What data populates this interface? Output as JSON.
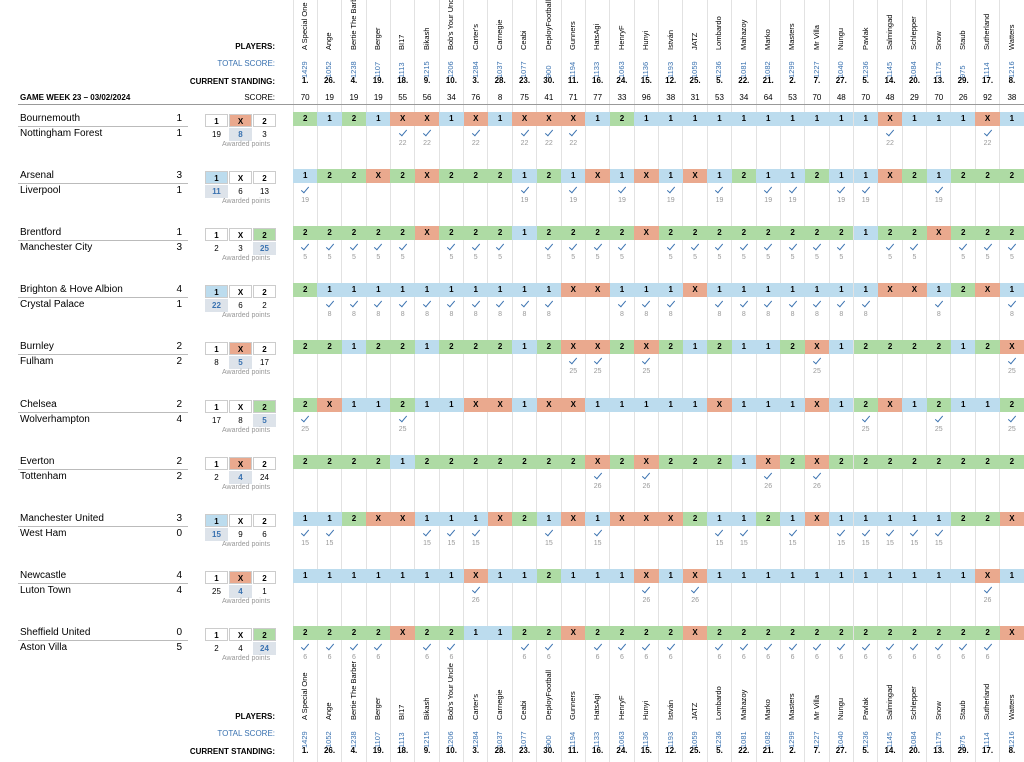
{
  "labels": {
    "players": "PLAYERS:",
    "total_score": "TOTAL SCORE:",
    "standing": "CURRENT STANDING:",
    "score": "SCORE:",
    "game_week": "GAME WEEK 23 – 03/02/2024",
    "awarded": "Awarded points",
    "outcomes": [
      "1",
      "X",
      "2"
    ],
    "colors": [
      "#bcdcee",
      "#eaa98e",
      "#aedba4"
    ]
  },
  "players": [
    {
      "name": "A Special One",
      "total": 1429,
      "standing": "1.",
      "score": 70
    },
    {
      "name": "Ange",
      "total": 1052,
      "standing": "26.",
      "score": 19
    },
    {
      "name": "Bertie The Barber",
      "total": 1238,
      "standing": "4.",
      "score": 19
    },
    {
      "name": "Berger",
      "total": 1107,
      "standing": "19.",
      "score": 19
    },
    {
      "name": "BI17",
      "total": 1113,
      "standing": "18.",
      "score": 55
    },
    {
      "name": "Bikash",
      "total": 1215,
      "standing": "9.",
      "score": 56
    },
    {
      "name": "Bob's Your Uncle",
      "total": 1206,
      "standing": "10.",
      "score": 34
    },
    {
      "name": "Carter's",
      "total": 1284,
      "standing": "3.",
      "score": 76
    },
    {
      "name": "Carnegie",
      "total": 1037,
      "standing": "28.",
      "score": 8
    },
    {
      "name": "Ceabi",
      "total": 1077,
      "standing": "23.",
      "score": 75
    },
    {
      "name": "DeployFootball",
      "total": 900,
      "standing": "30.",
      "score": 41
    },
    {
      "name": "Gunners",
      "total": 1194,
      "standing": "11.",
      "score": 71
    },
    {
      "name": "HatsAgi",
      "total": 1133,
      "standing": "16.",
      "score": 77
    },
    {
      "name": "HenryF",
      "total": 1063,
      "standing": "24.",
      "score": 33
    },
    {
      "name": "Hunyi",
      "total": 1136,
      "standing": "15.",
      "score": 96
    },
    {
      "name": "István",
      "total": 1193,
      "standing": "12.",
      "score": 38
    },
    {
      "name": "JATZ",
      "total": 1059,
      "standing": "25.",
      "score": 31
    },
    {
      "name": "Lombardo",
      "total": 1236,
      "standing": "5.",
      "score": 53
    },
    {
      "name": "Mahazoy",
      "total": 1081,
      "standing": "22.",
      "score": 34
    },
    {
      "name": "Marko",
      "total": 1082,
      "standing": "21.",
      "score": 64
    },
    {
      "name": "Masters",
      "total": 1299,
      "standing": "2.",
      "score": 53
    },
    {
      "name": "Mr Villa",
      "total": 1227,
      "standing": "7.",
      "score": 70
    },
    {
      "name": "Nungu",
      "total": 1040,
      "standing": "27.",
      "score": 48
    },
    {
      "name": "Pavlak",
      "total": 1236,
      "standing": "5.",
      "score": 70
    },
    {
      "name": "Salmingad",
      "total": 1145,
      "standing": "14.",
      "score": 48
    },
    {
      "name": "Schlepper",
      "total": 1084,
      "standing": "20.",
      "score": 29
    },
    {
      "name": "Snow",
      "total": 1175,
      "standing": "13.",
      "score": 70
    },
    {
      "name": "Staub",
      "total": 975,
      "standing": "29.",
      "score": 26
    },
    {
      "name": "Sutherland",
      "total": 1114,
      "standing": "17.",
      "score": 92
    },
    {
      "name": "Watters",
      "total": 1216,
      "standing": "8.",
      "score": 38
    }
  ],
  "matches": [
    {
      "home": "Bournemouth",
      "away": "Nottingham Forest",
      "home_goals": 1,
      "away_goals": 1,
      "counts": [
        19,
        8,
        3
      ],
      "result": "X",
      "points": 22,
      "picks": [
        "2",
        "1",
        "2",
        "1",
        "X",
        "X",
        "1",
        "X",
        "1",
        "X",
        "X",
        "X",
        "1",
        "2",
        "1",
        "1",
        "1",
        "1",
        "1",
        "1",
        "1",
        "1",
        "1",
        "1",
        "X",
        "1",
        "1",
        "1",
        "X",
        "1"
      ]
    },
    {
      "home": "Arsenal",
      "away": "Liverpool",
      "home_goals": 3,
      "away_goals": 1,
      "counts": [
        11,
        6,
        13
      ],
      "result": "1",
      "points": 19,
      "picks": [
        "1",
        "2",
        "2",
        "X",
        "2",
        "X",
        "2",
        "2",
        "2",
        "1",
        "2",
        "1",
        "X",
        "1",
        "X",
        "1",
        "X",
        "1",
        "2",
        "1",
        "1",
        "2",
        "1",
        "1",
        "X",
        "2",
        "1",
        "2",
        "2",
        "2"
      ]
    },
    {
      "home": "Brentford",
      "away": "Manchester City",
      "home_goals": 1,
      "away_goals": 3,
      "counts": [
        2,
        3,
        25
      ],
      "result": "2",
      "points": 5,
      "picks": [
        "2",
        "2",
        "2",
        "2",
        "2",
        "X",
        "2",
        "2",
        "2",
        "1",
        "2",
        "2",
        "2",
        "2",
        "X",
        "2",
        "2",
        "2",
        "2",
        "2",
        "2",
        "2",
        "2",
        "1",
        "2",
        "2",
        "X",
        "2",
        "2",
        "2"
      ]
    },
    {
      "home": "Brighton & Hove Albion",
      "away": "Crystal Palace",
      "home_goals": 4,
      "away_goals": 1,
      "counts": [
        22,
        6,
        2
      ],
      "result": "1",
      "points": 8,
      "picks": [
        "2",
        "1",
        "1",
        "1",
        "1",
        "1",
        "1",
        "1",
        "1",
        "1",
        "1",
        "X",
        "X",
        "1",
        "1",
        "1",
        "X",
        "1",
        "1",
        "1",
        "1",
        "1",
        "1",
        "1",
        "X",
        "X",
        "1",
        "2",
        "X",
        "1"
      ]
    },
    {
      "home": "Burnley",
      "away": "Fulham",
      "home_goals": 2,
      "away_goals": 2,
      "counts": [
        8,
        5,
        17
      ],
      "result": "X",
      "points": 25,
      "picks": [
        "2",
        "2",
        "1",
        "2",
        "2",
        "1",
        "2",
        "2",
        "2",
        "1",
        "2",
        "X",
        "X",
        "2",
        "X",
        "2",
        "1",
        "2",
        "1",
        "1",
        "2",
        "X",
        "1",
        "2",
        "2",
        "2",
        "2",
        "1",
        "2",
        "X"
      ]
    },
    {
      "home": "Chelsea",
      "away": "Wolverhampton",
      "home_goals": 2,
      "away_goals": 4,
      "counts": [
        17,
        8,
        5
      ],
      "result": "2",
      "points": 25,
      "picks": [
        "2",
        "X",
        "1",
        "1",
        "2",
        "1",
        "1",
        "X",
        "X",
        "1",
        "X",
        "X",
        "1",
        "1",
        "1",
        "1",
        "1",
        "X",
        "1",
        "1",
        "1",
        "X",
        "1",
        "2",
        "X",
        "1",
        "2",
        "1",
        "1",
        "2"
      ]
    },
    {
      "home": "Everton",
      "away": "Tottenham",
      "home_goals": 2,
      "away_goals": 2,
      "counts": [
        2,
        4,
        24
      ],
      "result": "X",
      "points": 26,
      "picks": [
        "2",
        "2",
        "2",
        "2",
        "1",
        "2",
        "2",
        "2",
        "2",
        "2",
        "2",
        "2",
        "X",
        "2",
        "X",
        "2",
        "2",
        "2",
        "1",
        "X",
        "2",
        "X",
        "2",
        "2",
        "2",
        "2",
        "2",
        "2",
        "2",
        "2"
      ]
    },
    {
      "home": "Manchester United",
      "away": "West Ham",
      "home_goals": 3,
      "away_goals": 0,
      "counts": [
        15,
        9,
        6
      ],
      "result": "1",
      "points": 15,
      "picks": [
        "1",
        "1",
        "2",
        "X",
        "X",
        "1",
        "1",
        "1",
        "X",
        "2",
        "1",
        "X",
        "1",
        "X",
        "X",
        "X",
        "2",
        "1",
        "1",
        "2",
        "1",
        "X",
        "1",
        "1",
        "1",
        "1",
        "1",
        "2",
        "2",
        "X"
      ]
    },
    {
      "home": "Newcastle",
      "away": "Luton Town",
      "home_goals": 4,
      "away_goals": 4,
      "counts": [
        25,
        4,
        1
      ],
      "result": "X",
      "points": 26,
      "picks": [
        "1",
        "1",
        "1",
        "1",
        "1",
        "1",
        "1",
        "X",
        "1",
        "1",
        "2",
        "1",
        "1",
        "1",
        "X",
        "1",
        "X",
        "1",
        "1",
        "1",
        "1",
        "1",
        "1",
        "1",
        "1",
        "1",
        "1",
        "1",
        "X",
        "1"
      ]
    },
    {
      "home": "Sheffield United",
      "away": "Aston Villa",
      "home_goals": 0,
      "away_goals": 5,
      "counts": [
        2,
        4,
        24
      ],
      "result": "2",
      "points": 6,
      "picks": [
        "2",
        "2",
        "2",
        "2",
        "X",
        "2",
        "2",
        "1",
        "1",
        "2",
        "2",
        "X",
        "2",
        "2",
        "2",
        "2",
        "X",
        "2",
        "2",
        "2",
        "2",
        "2",
        "2",
        "2",
        "2",
        "2",
        "2",
        "2",
        "2",
        "X"
      ]
    }
  ]
}
